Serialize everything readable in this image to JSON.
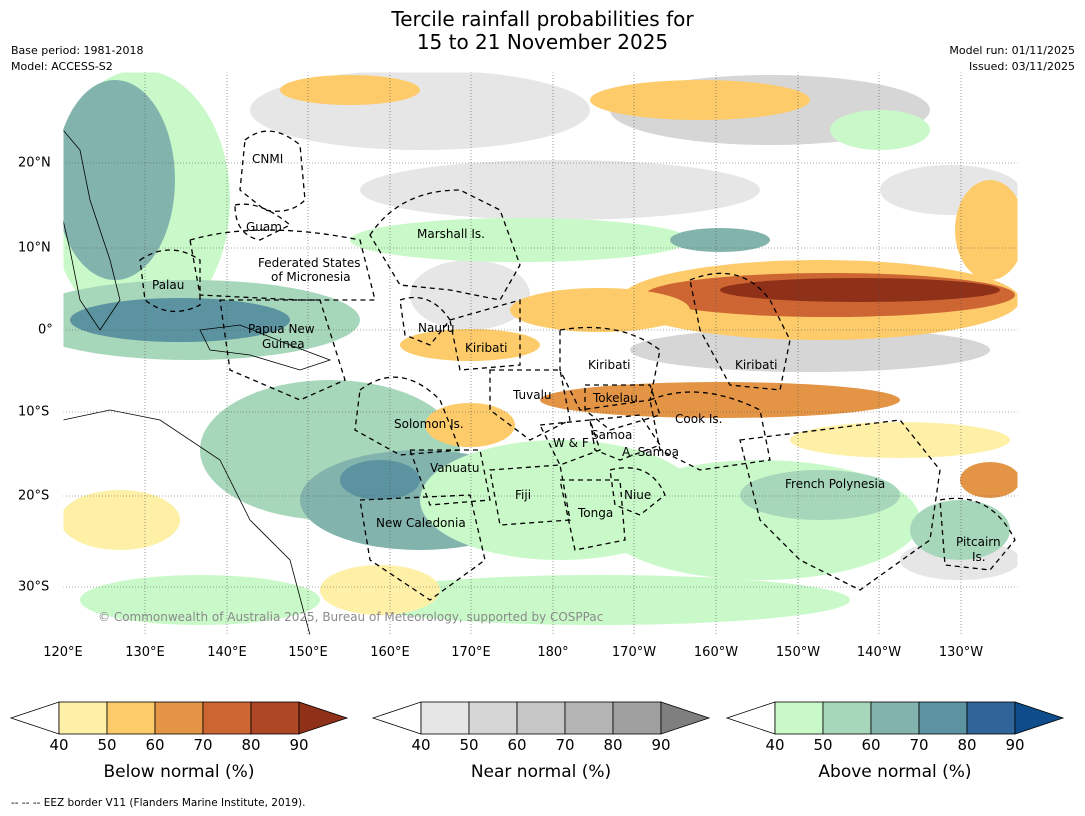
{
  "header": {
    "title_line1": "Tercile rainfall probabilities for",
    "title_line2": "15 to 21 November 2025",
    "base_period": "Base period: 1981-2018",
    "model": "Model: ACCESS-S2",
    "model_run": "Model run: 01/11/2025",
    "issued": "Issued: 03/11/2025"
  },
  "map": {
    "copyright": "© Commonwealth of Australia 2025, Bureau of Meteorology, supported by COSPPac",
    "lon_labels": [
      "120°E",
      "130°E",
      "140°E",
      "150°E",
      "160°E",
      "170°E",
      "180°",
      "170°W",
      "160°W",
      "150°W",
      "140°W",
      "130°W"
    ],
    "lat_labels": [
      "20°N",
      "10°N",
      "0°",
      "10°S",
      "20°S",
      "30°S"
    ],
    "regions": {
      "cnmi": "CNMI",
      "guam": "Guam",
      "marshall": "Marshall Is.",
      "fsm_1": "Federated States",
      "fsm_2": "of Micronesia",
      "palau": "Palau",
      "png_1": "Papua New",
      "png_2": "Guinea",
      "nauru": "Nauru",
      "kiribati_w": "Kiribati",
      "kiribati_c": "Kiribati",
      "kiribati_e": "Kiribati",
      "tuvalu": "Tuvalu",
      "tokelau": "Tokelau",
      "cook": "Cook Is.",
      "solomon": "Solomon Is.",
      "wf": "W & F",
      "samoa": "Samoa",
      "asamoa": "A. Samoa",
      "vanuatu": "Vanuatu",
      "fiji": "Fiji",
      "niue": "Niue",
      "tonga": "Tonga",
      "newcal": "New Caledonia",
      "frpoly": "French Polynesia",
      "pitcairn_1": "Pitcairn",
      "pitcairn_2": "Is."
    }
  },
  "legend": {
    "ticks": [
      "40",
      "50",
      "60",
      "70",
      "80",
      "90"
    ],
    "below": {
      "title": "Below normal (%)",
      "colors": [
        "#ffffff",
        "#fff0a8",
        "#fdcb6a",
        "#e39445",
        "#cd6633",
        "#ad4725",
        "#8f3119"
      ]
    },
    "near": {
      "title": "Near normal (%)",
      "colors": [
        "#ffffff",
        "#e6e6e6",
        "#d6d6d6",
        "#c6c6c6",
        "#b4b4b4",
        "#a0a0a0",
        "#7f7f7f"
      ]
    },
    "above": {
      "title": "Above normal (%)",
      "colors": [
        "#ffffff",
        "#c9f9c9",
        "#a7d7bb",
        "#82b4ad",
        "#5c93a0",
        "#31659a",
        "#0f4c8c"
      ]
    },
    "eez_note": "--  --  -- EEZ border V11 (Flanders Marine Institute, 2019)."
  }
}
